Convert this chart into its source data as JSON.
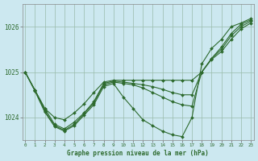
{
  "title": "Graphe pression niveau de la mer (hPa)",
  "bg_color": "#cce8f0",
  "line_color": "#2d6a2d",
  "grid_color": "#99bbaa",
  "x_min": 0,
  "x_max": 23,
  "y_min": 1023.5,
  "y_max": 1026.5,
  "yticks": [
    1024,
    1025,
    1026
  ],
  "xticks": [
    0,
    1,
    2,
    3,
    4,
    5,
    6,
    7,
    8,
    9,
    10,
    11,
    12,
    13,
    14,
    15,
    16,
    17,
    18,
    19,
    20,
    21,
    22,
    23
  ],
  "series": [
    [
      1025.0,
      1024.6,
      1024.2,
      1024.0,
      1023.95,
      1024.1,
      1024.3,
      1024.55,
      1024.78,
      1024.82,
      1024.82,
      1024.82,
      1024.82,
      1024.82,
      1024.82,
      1024.82,
      1024.82,
      1024.82,
      1025.0,
      1025.3,
      1025.55,
      1025.85,
      1026.05,
      1026.15
    ],
    [
      1025.0,
      1024.6,
      1024.2,
      1023.85,
      1023.75,
      1023.9,
      1024.1,
      1024.35,
      1024.75,
      1024.8,
      1024.78,
      1024.75,
      1024.72,
      1024.68,
      1024.62,
      1024.55,
      1024.5,
      1024.5,
      1025.0,
      1025.3,
      1025.5,
      1025.8,
      1026.0,
      1026.12
    ],
    [
      1025.0,
      1024.6,
      1024.15,
      1023.82,
      1023.72,
      1023.85,
      1024.08,
      1024.32,
      1024.72,
      1024.78,
      1024.75,
      1024.72,
      1024.65,
      1024.55,
      1024.45,
      1024.35,
      1024.28,
      1024.25,
      1025.0,
      1025.28,
      1025.45,
      1025.72,
      1025.95,
      1026.08
    ],
    [
      1025.0,
      1024.58,
      1024.12,
      1023.8,
      1023.7,
      1023.82,
      1024.05,
      1024.28,
      1024.68,
      1024.75,
      1024.45,
      1024.2,
      1023.95,
      1023.82,
      1023.7,
      1023.62,
      1023.58,
      1024.0,
      1025.18,
      1025.52,
      1025.72,
      1026.0,
      1026.08,
      1026.18
    ]
  ]
}
